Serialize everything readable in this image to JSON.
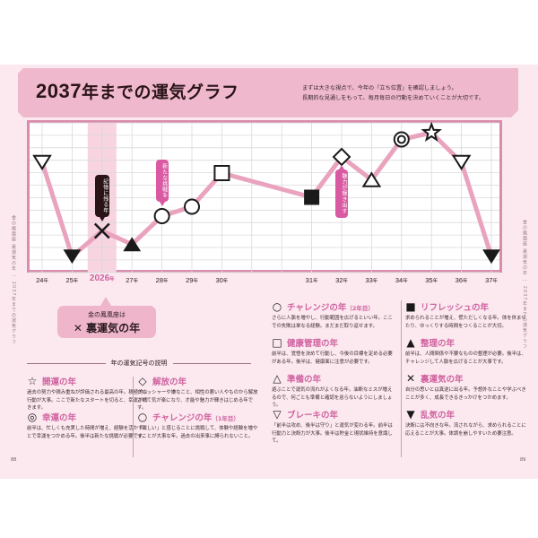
{
  "page": {
    "title_year": "2037",
    "title_rest": "年までの運気グラフ",
    "intro_lines": [
      "まずは大きな視点で、今年の「立ち位置」を確認しましょう。",
      "長期的な見通しをもって、毎月毎日の行動を決めていくことが大切です。"
    ],
    "side_left": "金の鳳凰座 裏運気の年 ｜ 2037年までの運気グラフ",
    "side_right": "金の鳳凰座 裏運気の年 ｜ 2037年までの運気グラフ",
    "page_left": "88",
    "page_right": "89"
  },
  "colors": {
    "accent_pink": "#d063a0",
    "line_pink": "#e9a3be",
    "band_pink": "#efb8cc",
    "frame_pink": "#d98cac",
    "page_bg": "#fbe9ef",
    "highlight_col": "#f7d4e0",
    "dark": "#1a1a1a"
  },
  "chart_data": {
    "type": "line",
    "title": "2037年までの運気グラフ",
    "xlabel": "",
    "ylabel": "運気",
    "grid": true,
    "categories": [
      "24年",
      "25年",
      "2026年",
      "27年",
      "28年",
      "29年",
      "30年",
      "31年",
      "32年",
      "33年",
      "34年",
      "35年",
      "36年",
      "37年"
    ],
    "x_positions": [
      0,
      1,
      2,
      3,
      4,
      5,
      6,
      9,
      10,
      11,
      12,
      13,
      14,
      15
    ],
    "values": [
      7.4,
      0.4,
      2.3,
      1.3,
      3.4,
      4.1,
      6.6,
      4.8,
      7.8,
      6.1,
      9.1,
      9.6,
      7.4,
      0.4
    ],
    "ylim": [
      0,
      10
    ],
    "markers": [
      "down-triangle-outline",
      "down-triangle-filled",
      "cross",
      "up-triangle-filled",
      "circle-outline",
      "circle-outline",
      "square-outline",
      "square-filled",
      "diamond-outline",
      "up-triangle-outline",
      "double-circle",
      "star-outline",
      "down-triangle-outline",
      "down-triangle-filled"
    ],
    "highlight_category": "2026年",
    "annotations": [
      {
        "at": "2026年",
        "text": "記憶に残る年",
        "style": "dark"
      },
      {
        "at": "28年",
        "text": "新たな挑戦を",
        "style": "pink"
      },
      {
        "at": "32年",
        "text": "魅力が輝き出す",
        "style": "pink"
      }
    ]
  },
  "callout_box": {
    "line1": "金の鳳凰座は",
    "symbol": "✕",
    "line2": "裏運気の年"
  },
  "legend": {
    "title": "年の運気記号の説明",
    "items": [
      {
        "symbol": "☆",
        "name": "開運の年",
        "sub": "",
        "desc": "過去の努力や積み重ねが評価される最高の年。積極的な行動が大事。ここで新たなスタートを切ると、幸運が続きます。"
      },
      {
        "symbol": "◎",
        "name": "幸運の年",
        "sub": "",
        "desc": "前半は、忙しくも充実した時間が増え、経験を活かすことで幸運をつかめる年。後半は新たな挑戦が必要です。"
      },
      {
        "symbol": "◇",
        "name": "解放の年",
        "sub": "",
        "desc": "プレッシャーや嫌なこと、相性の悪い人やものから解放されて気が楽になり、才能や魅力が輝きはじめる年です。"
      },
      {
        "symbol": "○",
        "name": "チャレンジの年",
        "sub": "（1年目）",
        "desc": "「新しい」と感じることに挑戦して、体験や経験を増やすことが大事な年。過去の出来事に縛られないこと。"
      },
      {
        "symbol": "○",
        "name": "チャレンジの年",
        "sub": "（2年目）",
        "desc": "さらに人脈を増やし、行動範囲を広げるといい年。ここでの失敗は単なる経験。まだまだ取り返せます。"
      },
      {
        "symbol": "□",
        "name": "健康管理の年",
        "sub": "",
        "desc": "前半は、覚悟を決めて行動し、今後の目標を定める必要がある年。後半は、健康面に注意が必要です。"
      },
      {
        "symbol": "△",
        "name": "準備の年",
        "sub": "",
        "desc": "遊ぶことで運気の流れがよくなる年。油断なミスが増えるので、何ごとも準備と確認を怠らないようにしましょう。"
      },
      {
        "symbol": "▽",
        "name": "ブレーキの年",
        "sub": "",
        "desc": "「前半は攻め、後半は守り」と運気が変わる年。前半は行動力と決断力が大事。後半は貯金と現状維持を意識して。"
      },
      {
        "symbol": "■",
        "name": "リフレッシュの年",
        "sub": "",
        "desc": "求められることが増え、慌ただしくなる年。体を休ませたり、ゆっくりする時間をつくることが大切。"
      },
      {
        "symbol": "▲",
        "name": "整理の年",
        "sub": "",
        "desc": "前半は、人間関係や不要なものの整理が必要。後半は、チャレンジして人脈を広げることが大事です。"
      },
      {
        "symbol": "✕",
        "name": "裏運気の年",
        "sub": "",
        "desc": "自分の思いとは真逆に出る年。予想外なことや学ぶべきことが多く、成長できるきっかけをつかめます。"
      },
      {
        "symbol": "▼",
        "name": "乱気の年",
        "sub": "",
        "desc": "決断には不向きな年。流されながら、求められることに応えることが大事。体調を崩しやすいため要注意。"
      }
    ]
  }
}
